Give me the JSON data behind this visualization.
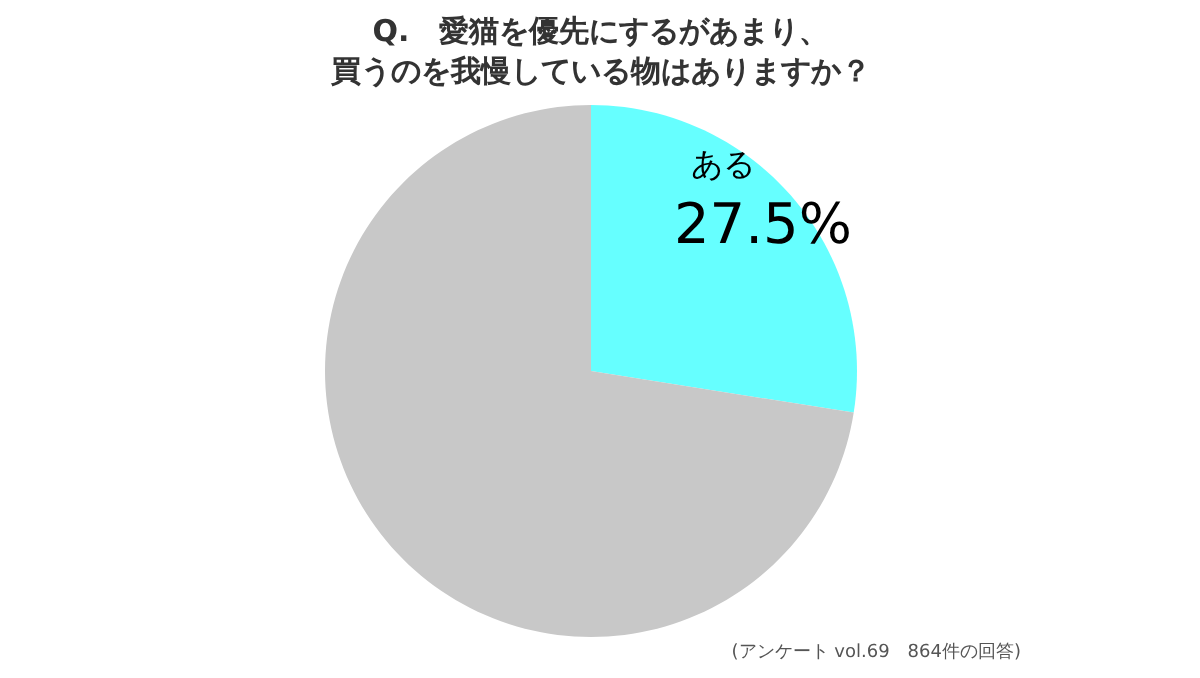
{
  "chart_data": {
    "type": "pie",
    "title": "Q.　愛猫を優先にするがあまり、買うのを我慢している物はありますか？",
    "categories": [
      "ある",
      null
    ],
    "values": [
      27.5,
      72.5
    ],
    "colors": [
      "#66ffff",
      "#c8c8c8"
    ],
    "value_labels": [
      "27.5%",
      null
    ],
    "annotations": [
      "(アンケート vol.69　864件の回答)"
    ]
  }
}
